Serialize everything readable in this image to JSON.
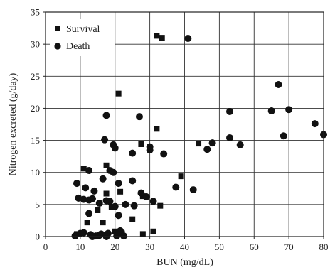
{
  "chart_data": {
    "type": "scatter",
    "xlabel": "BUN (mg/dL)",
    "ylabel": "Nitrogen excreted (g/day)",
    "xlim": [
      0,
      80
    ],
    "ylim": [
      0,
      35
    ],
    "xticks": [
      0,
      10,
      20,
      30,
      40,
      50,
      60,
      70,
      80
    ],
    "yticks": [
      0,
      5,
      10,
      15,
      20,
      25,
      30,
      35
    ],
    "grid": true,
    "legend_position": "top-left",
    "series": [
      {
        "name": "Survival",
        "marker": "square",
        "points": [
          [
            32,
            31.3
          ],
          [
            33.5,
            31.0
          ],
          [
            21,
            22.3
          ],
          [
            32,
            16.8
          ],
          [
            27.5,
            14.4
          ],
          [
            44,
            14.5
          ],
          [
            11,
            10.6
          ],
          [
            17.5,
            11.1
          ],
          [
            39,
            9.4
          ],
          [
            21.5,
            7.0
          ],
          [
            17.5,
            6.7
          ],
          [
            28,
            6.3
          ],
          [
            33,
            4.8
          ],
          [
            25,
            2.7
          ],
          [
            19,
            4.6
          ],
          [
            15,
            4.1
          ],
          [
            12,
            2.2
          ],
          [
            31,
            0.8
          ],
          [
            28,
            0.4
          ],
          [
            22,
            0.5
          ],
          [
            20,
            0.8
          ],
          [
            16.5,
            2.2
          ],
          [
            9,
            0.4
          ]
        ]
      },
      {
        "name": "Death",
        "marker": "circle",
        "points": [
          [
            41,
            30.9
          ],
          [
            67,
            23.7
          ],
          [
            17.5,
            18.9
          ],
          [
            27,
            18.7
          ],
          [
            53,
            19.5
          ],
          [
            65,
            19.6
          ],
          [
            70,
            19.8
          ],
          [
            77.5,
            17.6
          ],
          [
            80,
            15.9
          ],
          [
            68.5,
            15.7
          ],
          [
            53,
            15.4
          ],
          [
            56,
            14.3
          ],
          [
            48,
            14.6
          ],
          [
            46.5,
            13.6
          ],
          [
            34,
            12.9
          ],
          [
            30,
            14.0
          ],
          [
            30,
            13.5
          ],
          [
            25,
            13.0
          ],
          [
            19.5,
            14.3
          ],
          [
            20,
            13.8
          ],
          [
            17,
            15.1
          ],
          [
            18.5,
            10.3
          ],
          [
            19.5,
            10.0
          ],
          [
            12.5,
            10.3
          ],
          [
            9,
            8.3
          ],
          [
            11.5,
            7.6
          ],
          [
            14,
            7.1
          ],
          [
            16.5,
            9.0
          ],
          [
            21,
            8.3
          ],
          [
            25,
            8.7
          ],
          [
            9.5,
            6.0
          ],
          [
            11,
            5.8
          ],
          [
            12.5,
            5.7
          ],
          [
            13.5,
            5.9
          ],
          [
            15.5,
            5.2
          ],
          [
            17.5,
            5.6
          ],
          [
            18.5,
            5.5
          ],
          [
            20,
            4.7
          ],
          [
            23,
            5.0
          ],
          [
            25.5,
            4.8
          ],
          [
            27.5,
            6.8
          ],
          [
            29,
            6.2
          ],
          [
            31,
            5.5
          ],
          [
            37.5,
            7.7
          ],
          [
            42.5,
            7.3
          ],
          [
            12.5,
            3.6
          ],
          [
            21,
            3.3
          ],
          [
            10,
            0.5
          ],
          [
            8.5,
            0.1
          ],
          [
            11,
            0.6
          ],
          [
            13,
            0.3
          ],
          [
            14.5,
            0.1
          ],
          [
            15.5,
            0.2
          ],
          [
            16,
            0.4
          ],
          [
            17.5,
            0.3
          ],
          [
            18,
            0.5
          ],
          [
            20.5,
            0.1
          ],
          [
            21.5,
            0.9
          ],
          [
            22.5,
            0.1
          ],
          [
            13.5,
            0.0
          ],
          [
            17.5,
            0.0
          ]
        ]
      }
    ]
  }
}
